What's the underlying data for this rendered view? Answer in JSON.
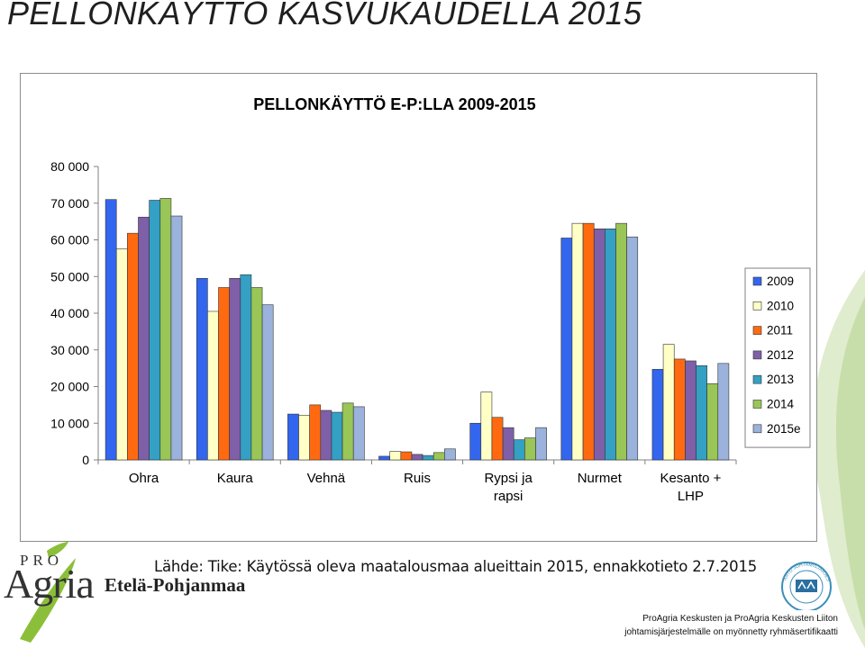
{
  "slide": {
    "title": "PELLONKÄYTTÖ KASVUKAUDELLA 2015",
    "source": "Lähde: Tike: Käytössä oleva maatalousmaa alueittain 2015, ennakkotieto 2.7.2015",
    "logo": {
      "pro": "PRO",
      "agria": "Agria",
      "region": "Etelä-Pohjanmaa"
    },
    "footer": {
      "line1": "ProAgria Keskusten ja ProAgria Keskusten Liiton",
      "line2": "johtamisjärjestelmälle on myönnetty ryhmäsertifikaatti"
    },
    "badge": {
      "top_text": "SERTIFIOITU JOHTAMISJÄRJESTELMÄ",
      "bottom_text": "DNV"
    }
  },
  "chart_data": {
    "type": "bar",
    "title": "PELLONKÄYTTÖ E-P:LLA 2009-2015",
    "xlabel": "",
    "ylabel": "",
    "ylim": [
      0,
      80000
    ],
    "yticks": [
      0,
      10000,
      20000,
      30000,
      40000,
      50000,
      60000,
      70000,
      80000
    ],
    "ytick_labels": [
      "0",
      "10 000",
      "20 000",
      "30 000",
      "40 000",
      "50 000",
      "60 000",
      "70 000",
      "80 000"
    ],
    "categories": [
      "Ohra",
      "Kaura",
      "Vehnä",
      "Ruis",
      "Rypsi ja rapsi",
      "Nurmet",
      "Kesanto + LHP"
    ],
    "category_lines": [
      [
        "Ohra"
      ],
      [
        "Kaura"
      ],
      [
        "Vehnä"
      ],
      [
        "Ruis"
      ],
      [
        "Rypsi ja",
        "rapsi"
      ],
      [
        "Nurmet"
      ],
      [
        "Kesanto +",
        "LHP"
      ]
    ],
    "legend_position": "right",
    "grid": false,
    "series": [
      {
        "name": "2009",
        "color": "#3366ee",
        "values": [
          71000,
          49500,
          12500,
          1000,
          10000,
          60500,
          24700
        ]
      },
      {
        "name": "2010",
        "color": "#ffffc6",
        "values": [
          57500,
          40500,
          12200,
          2300,
          18500,
          64500,
          31500
        ]
      },
      {
        "name": "2011",
        "color": "#ff6a10",
        "values": [
          61800,
          47000,
          15000,
          2200,
          11600,
          64500,
          27500
        ]
      },
      {
        "name": "2012",
        "color": "#7e5fa8",
        "values": [
          66200,
          49500,
          13500,
          1500,
          8800,
          63000,
          27000
        ]
      },
      {
        "name": "2013",
        "color": "#33a0c4",
        "values": [
          70800,
          50500,
          13000,
          1200,
          5500,
          63000,
          25700
        ]
      },
      {
        "name": "2014",
        "color": "#99c656",
        "values": [
          71300,
          47000,
          15500,
          2000,
          6000,
          64500,
          20800
        ]
      },
      {
        "name": "2015e",
        "color": "#9ab2dc",
        "values": [
          66500,
          42300,
          14500,
          3000,
          8800,
          60800,
          26300
        ]
      }
    ]
  }
}
